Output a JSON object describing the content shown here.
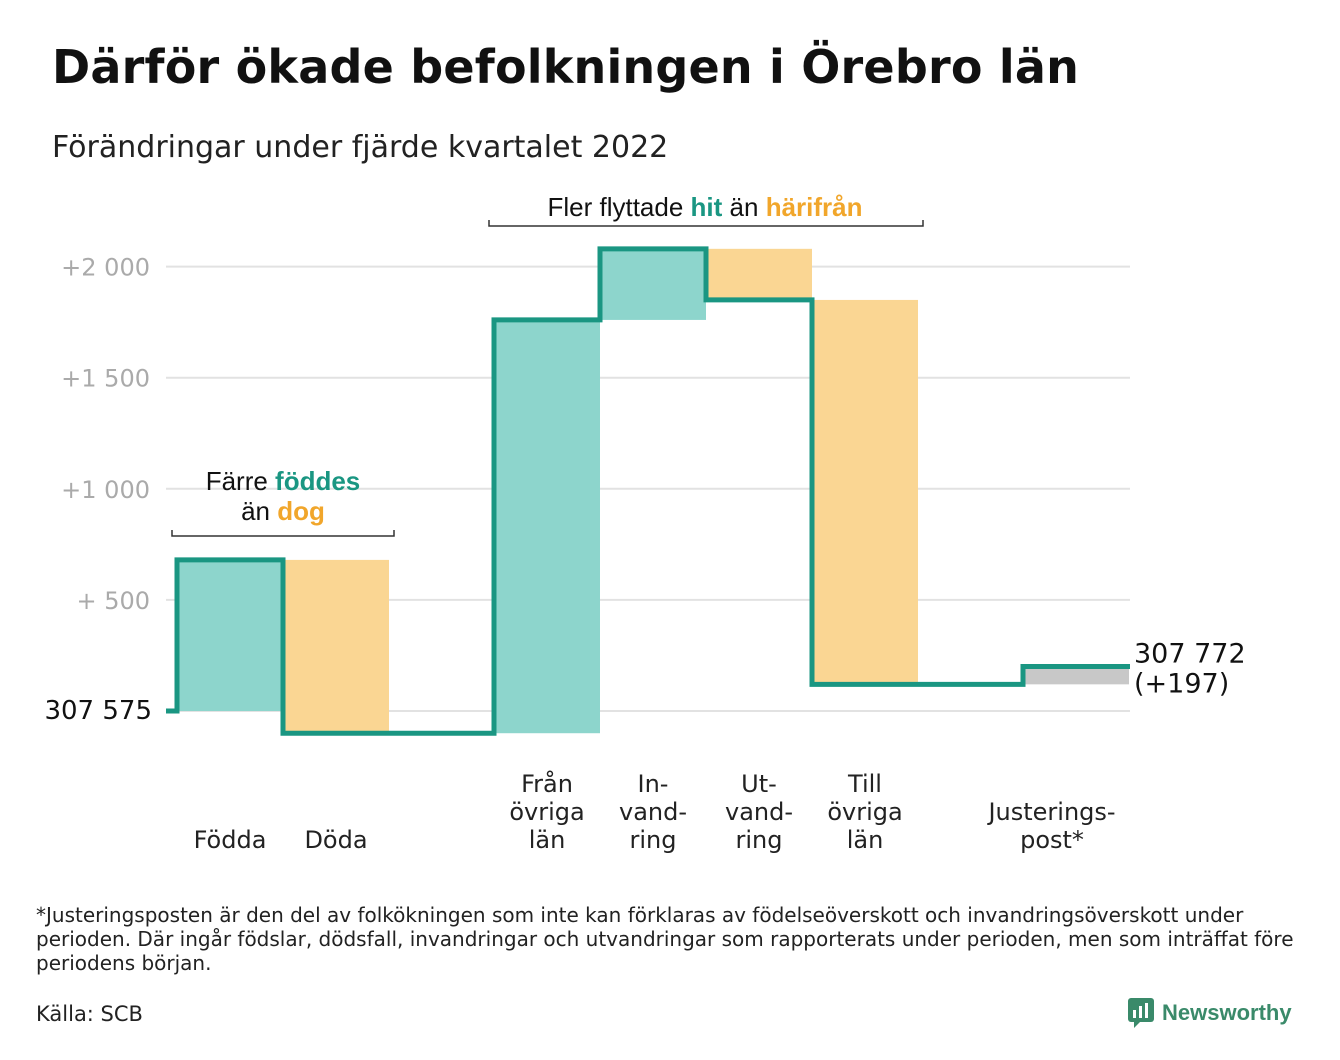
{
  "title": "Därför ökade befolkningen i Örebro län",
  "subtitle": "Förändringar under fjärde kvartalet 2022",
  "colors": {
    "teal_line": "#1a9682",
    "teal_fill": "#8dd5cc",
    "orange_fill": "#fad693",
    "grey_fill": "#c8c8c8",
    "grid": "#e2e2e2",
    "tick_text": "#aaaaaa",
    "teal_text": "#1a9682",
    "orange_text": "#f1a62b"
  },
  "chart_data": {
    "type": "waterfall",
    "start_label": "307 575",
    "end_label_value": "307 772",
    "end_label_change": "(+197)",
    "yticks": [
      {
        "value": 500,
        "label": "+ 500"
      },
      {
        "value": 1000,
        "label": "+1 000"
      },
      {
        "value": 1500,
        "label": "+1 500"
      },
      {
        "value": 2000,
        "label": "+2 000"
      }
    ],
    "ylim": [
      -150,
      2200
    ],
    "steps": [
      {
        "name": "Födda",
        "label_lines": [
          "Födda"
        ],
        "value": 680,
        "color": "teal"
      },
      {
        "name": "Döda",
        "label_lines": [
          "Döda"
        ],
        "value": -780,
        "color": "orange"
      },
      {
        "name": "Från övriga län",
        "label_lines": [
          "Från",
          "övriga",
          "län"
        ],
        "value": 1860,
        "color": "teal"
      },
      {
        "name": "Invandring",
        "label_lines": [
          "In-",
          "vand-",
          "ring"
        ],
        "value": 320,
        "color": "teal"
      },
      {
        "name": "Utvandring",
        "label_lines": [
          "Ut-",
          "vand-",
          "ring"
        ],
        "value": -230,
        "color": "orange"
      },
      {
        "name": "Till övriga län",
        "label_lines": [
          "Till",
          "övriga",
          "län"
        ],
        "value": -1730,
        "color": "orange"
      },
      {
        "name": "Justeringspost*",
        "label_lines": [
          "Justerings-",
          "post*"
        ],
        "value": 80,
        "color": "grey"
      }
    ],
    "end_total_change": 197,
    "annotations": [
      {
        "id": "births",
        "line1_plain": "Färre ",
        "line1_highlight": "föddes",
        "line2_plain": "än ",
        "line2_highlight": "dog"
      },
      {
        "id": "migration",
        "part1": "Fler flyttade ",
        "hl1": "hit",
        "part2": " än ",
        "hl2": "härifrån"
      }
    ]
  },
  "footnote": "*Justeringsposten är den del av folkökningen som inte kan förklaras av födelseöverskott och invandringsöverskott under perioden. Där ingår födslar, dödsfall, invandringar och utvandringar som rapporterats under perioden, men som inträffat före periodens början.",
  "source": "Källa: SCB",
  "brand": {
    "name": "Newsworthy",
    "icon": "newsworthy-logo-icon"
  }
}
